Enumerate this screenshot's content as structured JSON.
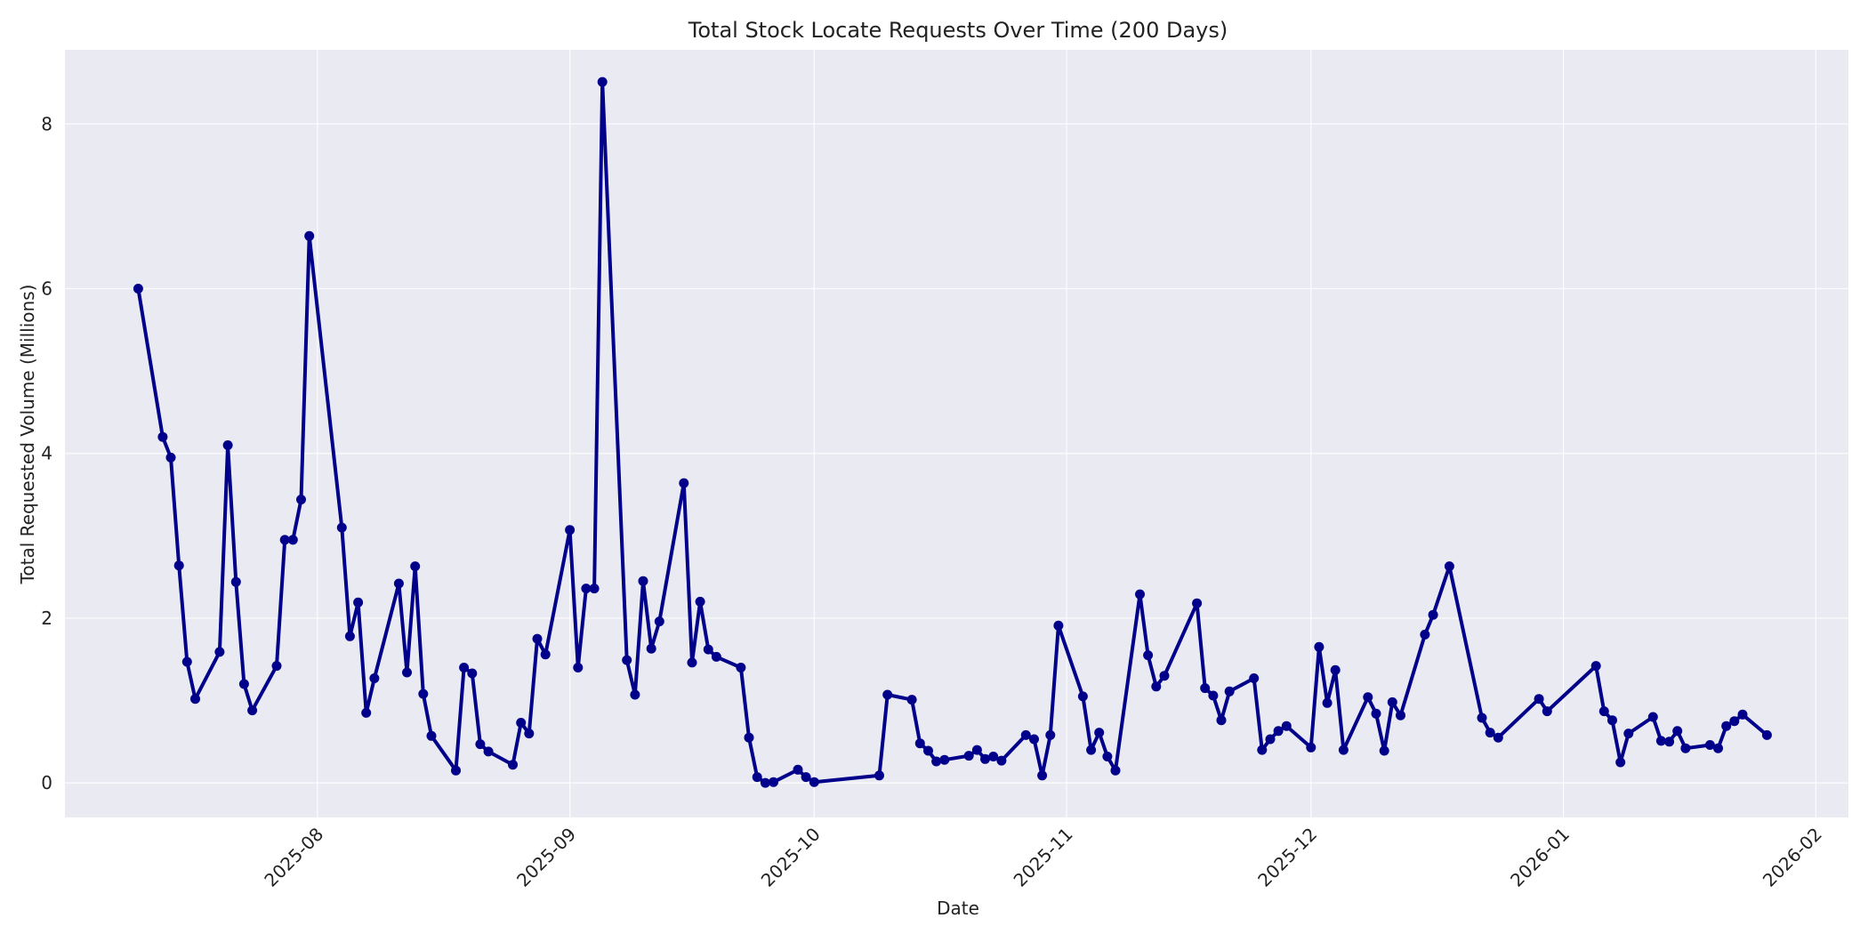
{
  "chart_data": {
    "type": "line",
    "title": "Total Stock Locate Requests Over Time (200 Days)",
    "xlabel": "Date",
    "ylabel": "Total Requested Volume (Millions)",
    "ylim": [
      -0.42,
      8.9
    ],
    "xlim": [
      "2025-07-01",
      "2026-02-05"
    ],
    "yticks": [
      0,
      2,
      4,
      6,
      8
    ],
    "xticks": [
      "2025-08",
      "2025-09",
      "2025-10",
      "2025-11",
      "2025-12",
      "2026-01",
      "2026-02"
    ],
    "grid": true,
    "legend": null,
    "series": [
      {
        "name": "Total Requested Volume (Millions)",
        "color": "#00008b",
        "marker": "circle",
        "x": [
          "2025-07-10",
          "2025-07-13",
          "2025-07-14",
          "2025-07-15",
          "2025-07-16",
          "2025-07-17",
          "2025-07-20",
          "2025-07-21",
          "2025-07-22",
          "2025-07-23",
          "2025-07-24",
          "2025-07-27",
          "2025-07-28",
          "2025-07-29",
          "2025-07-30",
          "2025-07-31",
          "2025-08-04",
          "2025-08-05",
          "2025-08-06",
          "2025-08-07",
          "2025-08-08",
          "2025-08-11",
          "2025-08-12",
          "2025-08-13",
          "2025-08-14",
          "2025-08-15",
          "2025-08-18",
          "2025-08-19",
          "2025-08-20",
          "2025-08-21",
          "2025-08-22",
          "2025-08-25",
          "2025-08-26",
          "2025-08-27",
          "2025-08-28",
          "2025-08-29",
          "2025-09-01",
          "2025-09-02",
          "2025-09-03",
          "2025-09-04",
          "2025-09-05",
          "2025-09-08",
          "2025-09-09",
          "2025-09-10",
          "2025-09-11",
          "2025-09-12",
          "2025-09-15",
          "2025-09-16",
          "2025-09-17",
          "2025-09-18",
          "2025-09-19",
          "2025-09-22",
          "2025-09-23",
          "2025-09-24",
          "2025-09-25",
          "2025-09-26",
          "2025-09-29",
          "2025-09-30",
          "2025-10-01",
          "2025-10-09",
          "2025-10-10",
          "2025-10-13",
          "2025-10-14",
          "2025-10-15",
          "2025-10-16",
          "2025-10-17",
          "2025-10-20",
          "2025-10-21",
          "2025-10-22",
          "2025-10-23",
          "2025-10-24",
          "2025-10-27",
          "2025-10-28",
          "2025-10-29",
          "2025-10-30",
          "2025-10-31",
          "2025-11-03",
          "2025-11-04",
          "2025-11-05",
          "2025-11-06",
          "2025-11-07",
          "2025-11-10",
          "2025-11-11",
          "2025-11-12",
          "2025-11-13",
          "2025-11-17",
          "2025-11-18",
          "2025-11-19",
          "2025-11-20",
          "2025-11-21",
          "2025-11-24",
          "2025-11-25",
          "2025-11-26",
          "2025-11-27",
          "2025-11-28",
          "2025-12-01",
          "2025-12-02",
          "2025-12-03",
          "2025-12-04",
          "2025-12-05",
          "2025-12-08",
          "2025-12-09",
          "2025-12-10",
          "2025-12-11",
          "2025-12-12",
          "2025-12-15",
          "2025-12-16",
          "2025-12-18",
          "2025-12-22",
          "2025-12-23",
          "2025-12-24",
          "2025-12-29",
          "2025-12-30",
          "2026-01-05",
          "2026-01-06",
          "2026-01-07",
          "2026-01-08",
          "2026-01-09",
          "2026-01-12",
          "2026-01-13",
          "2026-01-14",
          "2026-01-15",
          "2026-01-16",
          "2026-01-19",
          "2026-01-20",
          "2026-01-21",
          "2026-01-22",
          "2026-01-23",
          "2026-01-26"
        ],
        "values": [
          6.0,
          4.2,
          3.95,
          2.64,
          1.47,
          1.02,
          1.59,
          4.1,
          2.44,
          1.2,
          0.88,
          1.42,
          2.95,
          2.95,
          3.44,
          6.64,
          3.1,
          1.78,
          2.19,
          0.85,
          1.27,
          2.42,
          1.34,
          2.63,
          1.08,
          0.57,
          0.15,
          1.4,
          1.33,
          0.47,
          0.38,
          0.22,
          0.73,
          0.6,
          1.75,
          1.56,
          3.07,
          1.4,
          2.36,
          2.36,
          8.51,
          1.49,
          1.07,
          2.45,
          1.63,
          1.96,
          3.64,
          1.46,
          2.2,
          1.62,
          1.53,
          1.4,
          0.55,
          0.07,
          0.0,
          0.01,
          0.16,
          0.07,
          0.01,
          0.09,
          1.07,
          1.01,
          0.48,
          0.39,
          0.26,
          0.28,
          0.33,
          0.4,
          0.29,
          0.32,
          0.27,
          0.58,
          0.53,
          0.09,
          0.58,
          1.91,
          1.05,
          0.4,
          0.61,
          0.32,
          0.15,
          2.29,
          1.55,
          1.17,
          1.3,
          2.18,
          1.15,
          1.06,
          0.76,
          1.11,
          1.27,
          0.4,
          0.53,
          0.63,
          0.69,
          0.43,
          1.65,
          0.97,
          1.37,
          0.4,
          1.04,
          0.84,
          0.39,
          0.98,
          0.82,
          1.8,
          2.04,
          2.63,
          0.79,
          0.61,
          0.55,
          1.02,
          0.87,
          1.42,
          0.87,
          0.76,
          0.25,
          0.6,
          0.8,
          0.51,
          0.5,
          0.63,
          0.42,
          0.46,
          0.42,
          0.69,
          0.75,
          0.83,
          0.58
        ]
      }
    ]
  },
  "style": {
    "plot_bg": "#eaeaf2",
    "page_bg": "#ffffff",
    "line_color": "#00008b",
    "grid_color": "#ffffff",
    "text_color": "#222222"
  }
}
